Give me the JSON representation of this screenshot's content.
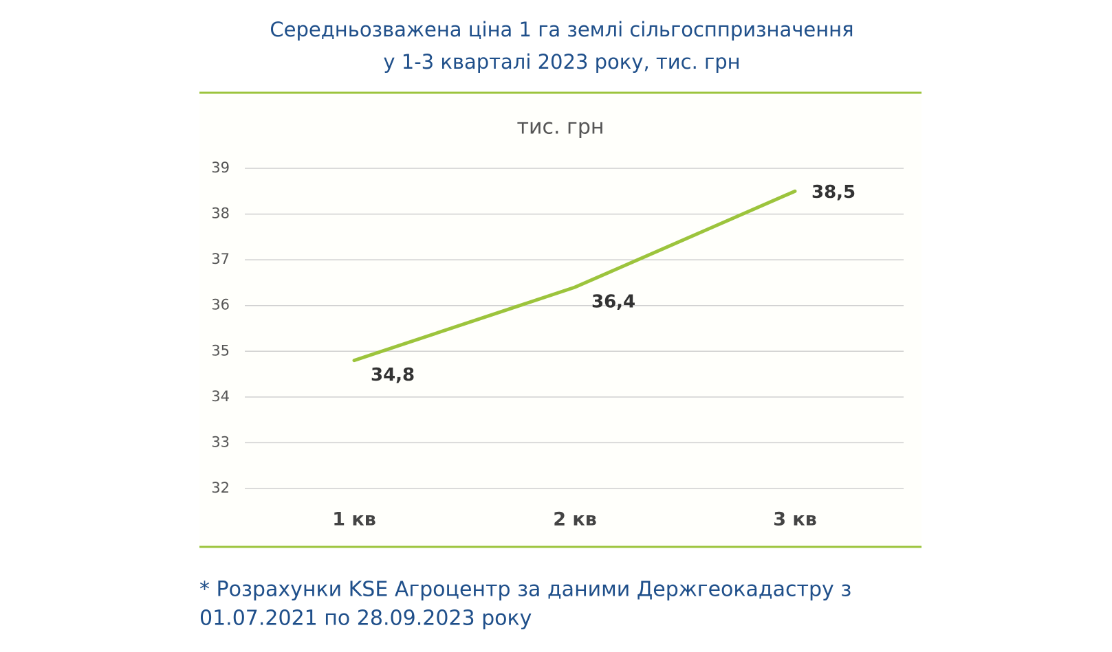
{
  "chart_data": {
    "type": "line",
    "title": [
      "Середньозважена ціна 1 га землі сільгосппризначення",
      "у 1-3 кварталі 2023 року, тис. грн"
    ],
    "y_axis_label": "тис. грн",
    "categories": [
      "1 кв",
      "2 кв",
      "3 кв"
    ],
    "values": [
      34.8,
      36.4,
      38.5
    ],
    "value_labels": [
      "34,8",
      "36,4",
      "38,5"
    ],
    "color": "#9cc43c",
    "ylim": [
      32,
      39
    ],
    "yticks": [
      32,
      33,
      34,
      35,
      36,
      37,
      38,
      39
    ],
    "grid": true,
    "footnote": [
      "* Розрахунки KSE Агроцентр за даними Держгеокадастру з",
      "01.07.2021 по 28.09.2023 року"
    ]
  }
}
